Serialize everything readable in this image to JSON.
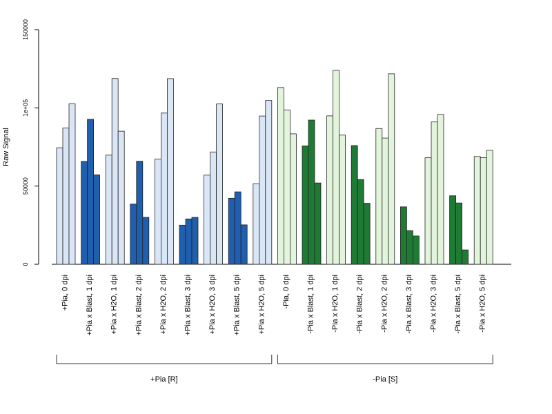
{
  "chart_data": {
    "type": "bar",
    "title": "",
    "xlabel": "",
    "ylabel": "Raw Signal",
    "ylim": [
      0,
      150000
    ],
    "yticks": [
      {
        "value": 0,
        "label": "0"
      },
      {
        "value": 50000,
        "label": "50000"
      },
      {
        "value": 100000,
        "label": "1e+05"
      },
      {
        "value": 150000,
        "label": "150000"
      }
    ],
    "grid": false,
    "legend": "none",
    "colors": {
      "pia_h2o": "#d9e6f5",
      "pia_blast": "#1f5fae",
      "nopia_h2o": "#e2f5dc",
      "nopia_blast": "#1f7a34",
      "stroke": "#222222",
      "axis": "#000000"
    },
    "categories": [
      {
        "label": "+Pia, 0 dpi",
        "color": "pia_h2o",
        "values": [
          74500,
          87200,
          102600
        ]
      },
      {
        "label": "+Pia x Blast, 1 dpi",
        "color": "pia_blast",
        "values": [
          65800,
          92700,
          57200
        ]
      },
      {
        "label": "+Pia x H2O, 1 dpi",
        "color": "pia_h2o",
        "values": [
          69800,
          118800,
          85100
        ]
      },
      {
        "label": "+Pia x Blast, 2 dpi",
        "color": "pia_blast",
        "values": [
          38500,
          65900,
          30000
        ]
      },
      {
        "label": "+Pia x H2O, 2 dpi",
        "color": "pia_h2o",
        "values": [
          67300,
          96700,
          118700
        ]
      },
      {
        "label": "+Pia x Blast, 3 dpi",
        "color": "pia_blast",
        "values": [
          25000,
          29000,
          30000
        ]
      },
      {
        "label": "+Pia x H2O, 3 dpi",
        "color": "pia_h2o",
        "values": [
          57000,
          71800,
          102500
        ]
      },
      {
        "label": "+Pia x Blast, 5 dpi",
        "color": "pia_blast",
        "values": [
          42200,
          46300,
          25200
        ]
      },
      {
        "label": "+Pia x H2O, 5 dpi",
        "color": "pia_h2o",
        "values": [
          51500,
          94800,
          104700
        ]
      },
      {
        "label": "-Pia, 0 dpi",
        "color": "nopia_h2o",
        "values": [
          113000,
          98700,
          83400
        ]
      },
      {
        "label": "-Pia x Blast, 1 dpi",
        "color": "nopia_blast",
        "values": [
          75700,
          92200,
          52000
        ]
      },
      {
        "label": "-Pia x H2O, 1 dpi",
        "color": "nopia_h2o",
        "values": [
          94900,
          124000,
          82600
        ]
      },
      {
        "label": "-Pia x Blast, 2 dpi",
        "color": "nopia_blast",
        "values": [
          75900,
          54200,
          39000
        ]
      },
      {
        "label": "-Pia x H2O, 2 dpi",
        "color": "nopia_h2o",
        "values": [
          86800,
          80700,
          121800
        ]
      },
      {
        "label": "-Pia x Blast, 3 dpi",
        "color": "nopia_blast",
        "values": [
          36700,
          21500,
          18100
        ]
      },
      {
        "label": "-Pia x H2O, 3 dpi",
        "color": "nopia_h2o",
        "values": [
          68100,
          91000,
          95800
        ]
      },
      {
        "label": "-Pia x Blast, 5 dpi",
        "color": "nopia_blast",
        "values": [
          43800,
          39200,
          9200
        ]
      },
      {
        "label": "-Pia x H2O, 5 dpi",
        "color": "nopia_h2o",
        "values": [
          68900,
          68200,
          72900
        ]
      }
    ],
    "groups": [
      {
        "label": "+Pia [R]",
        "from": 0,
        "to": 8
      },
      {
        "label": "-Pia [S]",
        "from": 9,
        "to": 17
      }
    ]
  }
}
